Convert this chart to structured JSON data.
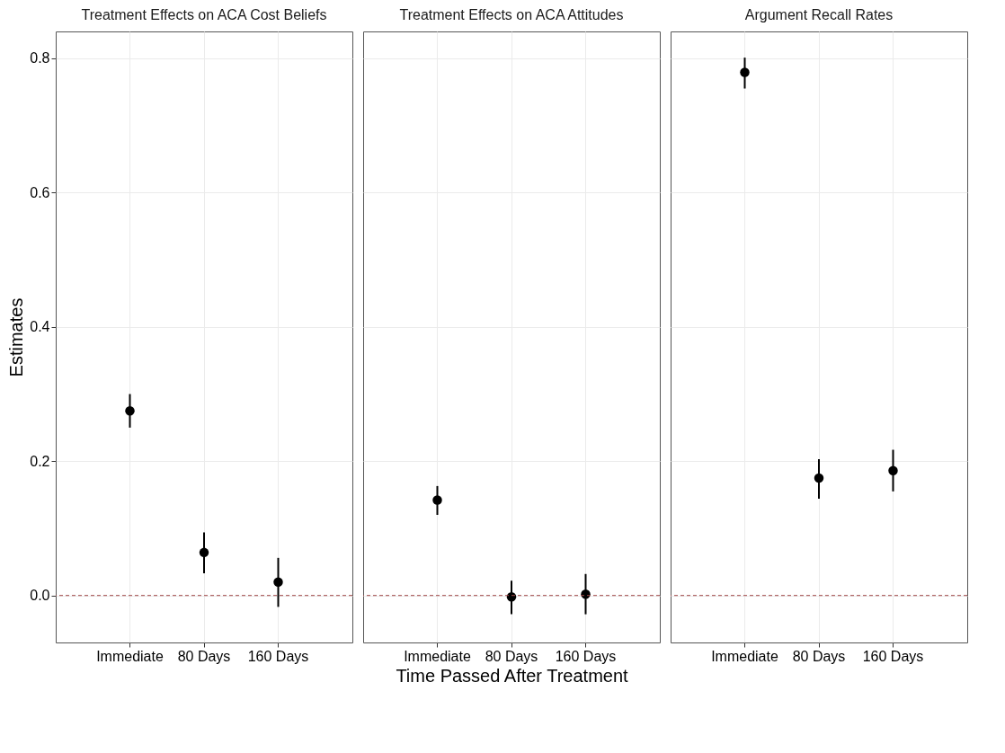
{
  "chart_data": [
    {
      "type": "scatter",
      "title": "Treatment Effects on ACA Cost Beliefs",
      "ylabel": "Estimates",
      "categories": [
        "Immediate",
        "80 Days",
        "160 Days"
      ],
      "series": [
        {
          "color": "#000000",
          "values": [
            0.275,
            0.064,
            0.02
          ],
          "errors": [
            [
              0.25,
              0.3
            ],
            [
              0.033,
              0.094
            ],
            [
              -0.017,
              0.056
            ]
          ]
        }
      ],
      "ylim": [
        -0.07,
        0.84
      ],
      "yticks": [
        {
          "value": 0,
          "label": "0.0"
        },
        {
          "value": 0.2,
          "label": "0.2"
        },
        {
          "value": 0.4,
          "label": "0.4"
        },
        {
          "value": 0.6,
          "label": "0.6"
        },
        {
          "value": 0.8,
          "label": "0.8"
        }
      ],
      "grid": true,
      "marker": "circle",
      "ref_lines": [
        {
          "axis": "y",
          "value": 0,
          "color": "#a04848",
          "line_style": "dashed"
        }
      ]
    },
    {
      "type": "scatter",
      "title": "Treatment Effects on ACA Attitudes",
      "xlabel": "Time Passed After Treatment",
      "categories": [
        "Immediate",
        "80 Days",
        "160 Days"
      ],
      "series": [
        {
          "color": "#000000",
          "values": [
            0.142,
            -0.002,
            0.002
          ],
          "errors": [
            [
              0.12,
              0.163
            ],
            [
              -0.028,
              0.022
            ],
            [
              -0.028,
              0.032
            ]
          ]
        }
      ],
      "ylim": [
        -0.07,
        0.84
      ],
      "yticks": [
        0.0,
        0.2,
        0.4,
        0.6,
        0.8
      ],
      "tick_labels": "x",
      "grid": true,
      "marker": "circle",
      "ref_lines": [
        {
          "axis": "y",
          "value": 0,
          "color": "#a04848",
          "line_style": "dashed"
        }
      ]
    },
    {
      "type": "scatter",
      "title": "Argument Recall Rates",
      "categories": [
        "Immediate",
        "80 Days",
        "160 Days"
      ],
      "series": [
        {
          "color": "#000000",
          "values": [
            0.779,
            0.175,
            0.186
          ],
          "errors": [
            [
              0.755,
              0.801
            ],
            [
              0.144,
              0.203
            ],
            [
              0.155,
              0.217
            ]
          ]
        }
      ],
      "ylim": [
        -0.07,
        0.84
      ],
      "yticks": [
        0.0,
        0.2,
        0.4,
        0.6,
        0.8
      ],
      "tick_labels": "x",
      "grid": true,
      "marker": "circle",
      "ref_lines": [
        {
          "axis": "y",
          "value": 0,
          "color": "#a04848",
          "line_style": "dashed"
        }
      ]
    }
  ]
}
